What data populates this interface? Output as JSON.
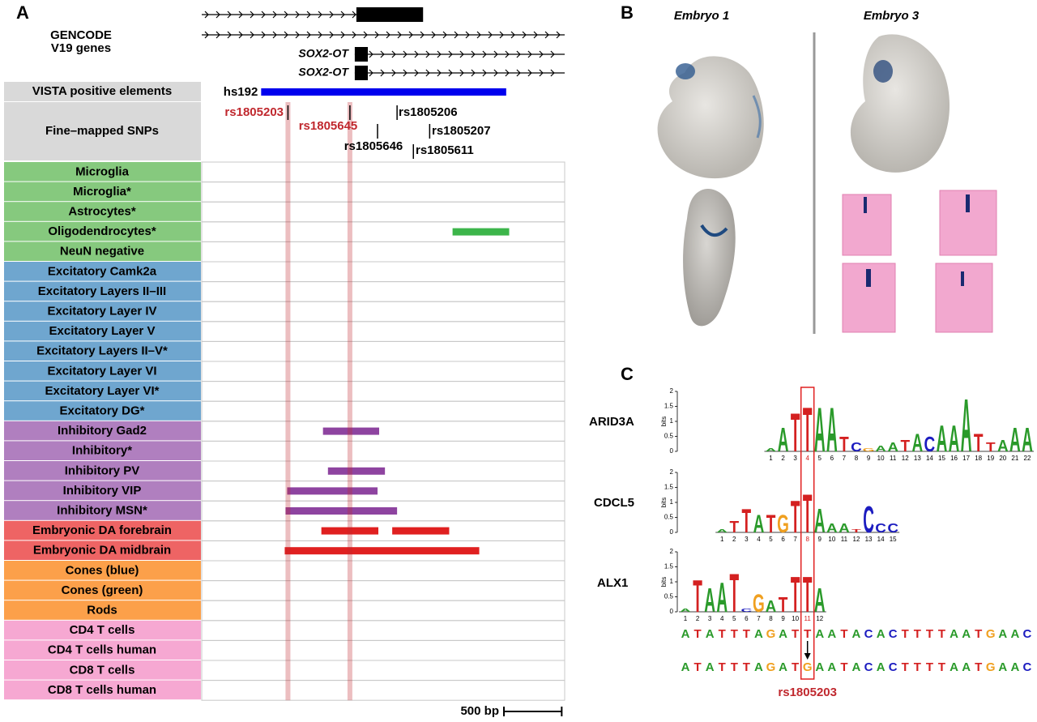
{
  "panel_labels": [
    "A",
    "B",
    "C"
  ],
  "panel_a": {
    "gencode_label": [
      "GENCODE",
      "V19 genes"
    ],
    "xlim": [
      0,
      3140
    ],
    "genes": [
      {
        "start": 0,
        "end": 1908,
        "exons": [
          [
            1338,
            1915
          ]
        ]
      },
      {
        "start": 0,
        "end": 3140,
        "exons": []
      },
      {
        "label": "SOX2-OT",
        "start": 1324,
        "end": 3140,
        "exons": [
          [
            1324,
            1437
          ]
        ]
      },
      {
        "label": "SOX2-OT",
        "start": 1324,
        "end": 3140,
        "exons": [
          [
            1324,
            1437
          ]
        ]
      }
    ],
    "vista_label": "VISTA positive elements",
    "vista_element": {
      "name": "hs192",
      "start": 514,
      "end": 2634,
      "color": "#0000ee"
    },
    "snp_label": "Fine–mapped SNPs",
    "highlight_color": "#c0282e",
    "snps": [
      {
        "name": "rs1805203",
        "pos": 746,
        "highlight": true
      },
      {
        "name": "rs1805645",
        "pos": 1282,
        "highlight": true
      },
      {
        "name": "rs1805206",
        "pos": 1690,
        "highlight": false
      },
      {
        "name": "rs1805207",
        "pos": 1972,
        "highlight": false
      },
      {
        "name": "rs1805646",
        "pos": 1521,
        "highlight": false
      },
      {
        "name": "rs1805611",
        "pos": 1831,
        "highlight": false
      }
    ],
    "groups": [
      {
        "color": "#86c97e",
        "bar_color": "#3cb54a",
        "tracks": [
          {
            "label": "Microglia",
            "peaks": []
          },
          {
            "label": "Microglia*",
            "peaks": []
          },
          {
            "label": "Astrocytes*",
            "peaks": []
          },
          {
            "label": "Oligodendrocytes*",
            "peaks": [
              [
                2170,
                2660
              ]
            ]
          },
          {
            "label": "NeuN negative",
            "peaks": []
          }
        ]
      },
      {
        "color": "#6fa6cf",
        "bar_color": "#2a6fb0",
        "tracks": [
          {
            "label": "Excitatory Camk2a",
            "peaks": []
          },
          {
            "label": "Excitatory Layers II–III",
            "peaks": []
          },
          {
            "label": "Excitatory Layer IV",
            "peaks": []
          },
          {
            "label": "Excitatory Layer V",
            "peaks": []
          },
          {
            "label": "Excitatory Layers II–V*",
            "peaks": []
          },
          {
            "label": "Excitatory Layer VI",
            "peaks": []
          },
          {
            "label": "Excitatory Layer VI*",
            "peaks": []
          },
          {
            "label": "Excitatory DG*",
            "peaks": []
          }
        ]
      },
      {
        "color": "#b07fbf",
        "bar_color": "#8e44a0",
        "tracks": [
          {
            "label": "Inhibitory Gad2",
            "peaks": [
              [
                1049,
                1535
              ]
            ]
          },
          {
            "label": "Inhibitory*",
            "peaks": []
          },
          {
            "label": "Inhibitory PV",
            "peaks": [
              [
                1092,
                1585
              ]
            ]
          },
          {
            "label": "Inhibitory VIP",
            "peaks": [
              [
                739,
                1521
              ]
            ]
          },
          {
            "label": "Inhibitory MSN*",
            "peaks": [
              [
                725,
                1690
              ]
            ]
          }
        ]
      },
      {
        "color": "#ee6464",
        "bar_color": "#e02020",
        "tracks": [
          {
            "label": "Embryonic DA forebrain",
            "peaks": [
              [
                1035,
                1528
              ],
              [
                1648,
                2141
              ]
            ]
          },
          {
            "label": "Embryonic DA midbrain",
            "peaks": [
              [
                718,
                2401
              ]
            ]
          }
        ]
      },
      {
        "color": "#fca04a",
        "bar_color": "#e07010",
        "tracks": [
          {
            "label": "Cones (blue)",
            "peaks": []
          },
          {
            "label": "Cones (green)",
            "peaks": []
          },
          {
            "label": "Rods",
            "peaks": []
          }
        ]
      },
      {
        "color": "#f6a8d2",
        "bar_color": "#d04090",
        "tracks": [
          {
            "label": "CD4 T cells",
            "peaks": []
          },
          {
            "label": "CD4 T cells human",
            "peaks": []
          },
          {
            "label": "CD8 T cells",
            "peaks": []
          },
          {
            "label": "CD8 T cells human",
            "peaks": []
          }
        ]
      }
    ],
    "scale_bar": {
      "label": "500 bp",
      "value": 500
    }
  },
  "panel_b": {
    "embryos": [
      "Embryo 1",
      "Embryo 3"
    ]
  },
  "panel_c": {
    "ylabel": "bits",
    "ylim": [
      0,
      2
    ],
    "yticks": [
      0,
      0.5,
      1,
      1.5,
      2
    ],
    "letter_colors": {
      "A": "#2a9a2a",
      "T": "#d42020",
      "C": "#1c1cc0",
      "G": "#f0a020"
    },
    "motifs": [
      {
        "name": "ARID3A",
        "snp_position": 4,
        "positions": [
          1,
          2,
          3,
          4,
          5,
          6,
          7,
          8,
          9,
          10,
          11,
          12,
          13,
          14,
          15,
          16,
          17,
          18,
          19,
          20,
          21,
          22
        ],
        "letters": [
          "A",
          "A",
          "T",
          "T",
          "A",
          "A",
          "T",
          "C",
          "G",
          "A",
          "A",
          "T",
          "A",
          "C",
          "A",
          "A",
          "A",
          "T",
          "T",
          "A",
          "A",
          "A"
        ],
        "heights": [
          0.1,
          0.8,
          1.3,
          1.5,
          1.5,
          1.5,
          0.5,
          0.3,
          0.1,
          0.2,
          0.3,
          0.4,
          0.6,
          0.5,
          0.9,
          0.9,
          1.8,
          0.6,
          0.3,
          0.4,
          0.8,
          0.8
        ]
      },
      {
        "name": "CDCL5",
        "snp_position": 8,
        "positions": [
          1,
          2,
          3,
          4,
          5,
          6,
          7,
          8,
          9,
          10,
          11,
          12,
          13,
          14,
          15
        ],
        "letters": [
          "A",
          "T",
          "T",
          "A",
          "T",
          "G",
          "T",
          "T",
          "A",
          "A",
          "A",
          "T",
          "C",
          "C",
          "C"
        ],
        "heights": [
          0.1,
          0.4,
          0.8,
          0.6,
          0.6,
          0.6,
          1.1,
          1.3,
          0.8,
          0.3,
          0.3,
          0.1,
          0.9,
          0.3,
          0.3
        ]
      },
      {
        "name": "ALX1",
        "snp_position": 11,
        "positions": [
          1,
          2,
          3,
          4,
          5,
          6,
          7,
          8,
          9,
          10,
          11,
          12
        ],
        "letters": [
          "A",
          "T",
          "A",
          "A",
          "T",
          "C",
          "G",
          "A",
          "T",
          "T",
          "T",
          "A"
        ],
        "heights": [
          0.1,
          1.1,
          0.8,
          1.0,
          1.3,
          0.1,
          0.6,
          0.4,
          0.5,
          1.2,
          1.2,
          0.8
        ]
      }
    ],
    "reference": [
      "A",
      "T",
      "A",
      "T",
      "T",
      "T",
      "A",
      "G",
      "A",
      "T",
      "T",
      "A",
      "A",
      "T",
      "A",
      "C",
      "A",
      "C",
      "T",
      "T",
      "T",
      "T",
      "A",
      "A",
      "T",
      "G",
      "A",
      "A",
      "C"
    ],
    "alternate": [
      "A",
      "T",
      "A",
      "T",
      "T",
      "T",
      "A",
      "G",
      "A",
      "T",
      "G",
      "A",
      "A",
      "T",
      "A",
      "C",
      "A",
      "C",
      "T",
      "T",
      "T",
      "T",
      "A",
      "A",
      "T",
      "G",
      "A",
      "A",
      "C"
    ],
    "snp_label": "rs1805203"
  }
}
